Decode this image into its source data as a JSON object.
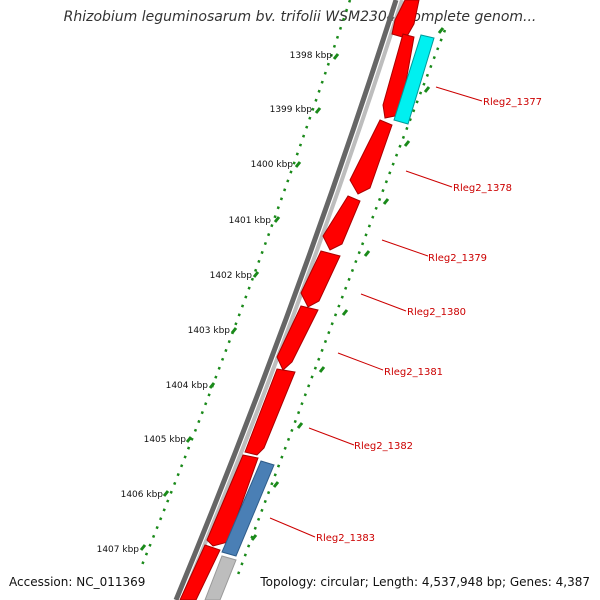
{
  "title": "Rhizobium leguminosarum bv. trifolii WSM2304, complete genom...",
  "accession": "Accession: NC_011369",
  "summary": "Topology: circular; Length: 4,537,948 bp; Genes: 4,387",
  "colors": {
    "forward_gene": "#ff0000",
    "reverse_gene_cyan": "#00f0f0",
    "reverse_gene_blue": "#4a7fb5",
    "backbone": "#888888",
    "tick": "#1a7a1a",
    "label": "#cc0000"
  },
  "kbp_ticks": [
    "1398 kbp",
    "1399 kbp",
    "1400 kbp",
    "1401 kbp",
    "1402 kbp",
    "1403 kbp",
    "1404 kbp",
    "1405 kbp",
    "1406 kbp",
    "1407 kbp"
  ],
  "genes": [
    {
      "label": "Rleg2_1377",
      "color": "#ff0000"
    },
    {
      "label": "Rleg2_1378",
      "color": "#ff0000"
    },
    {
      "label": "Rleg2_1379",
      "color": "#ff0000"
    },
    {
      "label": "Rleg2_1380",
      "color": "#ff0000"
    },
    {
      "label": "Rleg2_1381",
      "color": "#ff0000"
    },
    {
      "label": "Rleg2_1382",
      "color": "#ff0000"
    },
    {
      "label": "Rleg2_1383",
      "color": "#ff0000"
    }
  ]
}
